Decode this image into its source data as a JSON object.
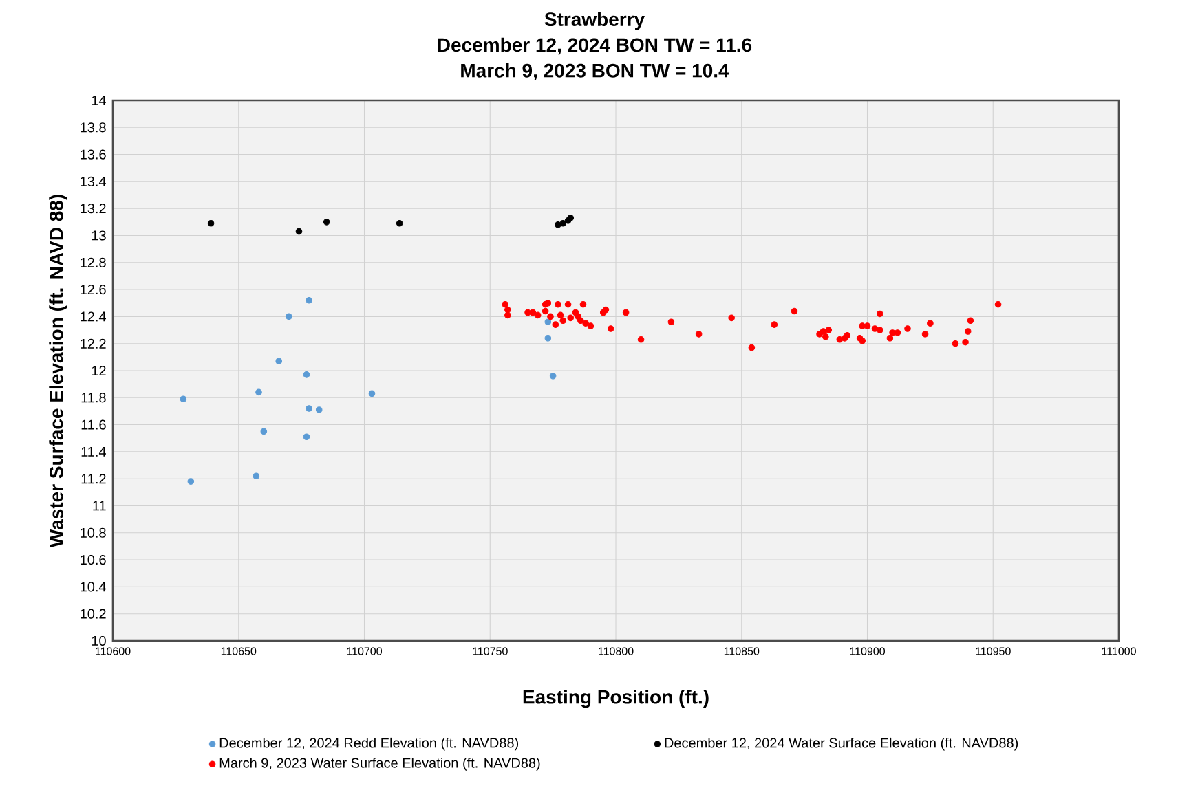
{
  "chart_data": {
    "type": "scatter",
    "title": "Strawberry",
    "subtitle": "December 12, 2024 BON TW = 11.6",
    "annotations": [
      "March 9, 2023 BON TW = 10.4"
    ],
    "xlabel": "Easting Position (ft.)",
    "ylabel": "Waster Surface Elevation (ft. NAVD 88)",
    "xlim": [
      110600,
      111000
    ],
    "xticks": [
      110600,
      110650,
      110700,
      110750,
      110800,
      110850,
      110900,
      110950,
      111000
    ],
    "ylim": [
      10,
      14
    ],
    "yticks": [
      10,
      10.2,
      10.4,
      10.6,
      10.8,
      11,
      11.2,
      11.4,
      11.6,
      11.8,
      12,
      12.2,
      12.4,
      12.6,
      12.8,
      13,
      13.2,
      13.4,
      13.6,
      13.8,
      14
    ],
    "grid": true,
    "legend": "bottom",
    "marker": "circle",
    "series": [
      {
        "name": "December 12, 2024 Redd Elevation (ft. NAVD88)",
        "color": "#5b9bd5",
        "x": [
          110628,
          110631,
          110657,
          110658,
          110660,
          110666,
          110670,
          110678,
          110677,
          110678,
          110682,
          110677,
          110703,
          110773,
          110773,
          110775
        ],
        "values": [
          11.79,
          11.18,
          11.22,
          11.84,
          11.55,
          12.07,
          12.4,
          12.52,
          11.97,
          11.72,
          11.71,
          11.51,
          11.83,
          12.36,
          12.24,
          11.96
        ]
      },
      {
        "name": "December 12, 2024 Water Surface Elevation (ft. NAVD88)",
        "color": "#000000",
        "x": [
          110639,
          110674,
          110685,
          110714,
          110777,
          110779,
          110781,
          110782
        ],
        "values": [
          13.09,
          13.03,
          13.1,
          13.09,
          13.08,
          13.09,
          13.11,
          13.13
        ]
      },
      {
        "name": "March 9, 2023 Water Surface Elevation (ft. NAVD88)",
        "color": "#ff0000",
        "x": [
          110756,
          110757,
          110757,
          110765,
          110767,
          110769,
          110772,
          110772,
          110773,
          110774,
          110776,
          110777,
          110778,
          110779,
          110781,
          110782,
          110784,
          110785,
          110786,
          110787,
          110788,
          110790,
          110795,
          110796,
          110798,
          110804,
          110810,
          110822,
          110833,
          110846,
          110854,
          110863,
          110871,
          110881,
          110882.5,
          110883.4,
          110884.6,
          110889,
          110891,
          110892,
          110897,
          110898,
          110898,
          110900,
          110903,
          110905,
          110905,
          110909,
          110910,
          110912,
          110916,
          110923,
          110925,
          110935,
          110939,
          110940,
          110941,
          110952
        ],
        "values": [
          12.49,
          12.45,
          12.41,
          12.43,
          12.43,
          12.41,
          12.49,
          12.44,
          12.5,
          12.4,
          12.34,
          12.49,
          12.41,
          12.37,
          12.49,
          12.39,
          12.43,
          12.4,
          12.37,
          12.49,
          12.35,
          12.33,
          12.43,
          12.45,
          12.31,
          12.43,
          12.23,
          12.36,
          12.27,
          12.39,
          12.17,
          12.34,
          12.44,
          12.27,
          12.29,
          12.25,
          12.3,
          12.23,
          12.24,
          12.26,
          12.24,
          12.22,
          12.33,
          12.33,
          12.31,
          12.42,
          12.3,
          12.24,
          12.28,
          12.28,
          12.31,
          12.27,
          12.35,
          12.2,
          12.21,
          12.29,
          12.37,
          12.49
        ]
      }
    ]
  }
}
